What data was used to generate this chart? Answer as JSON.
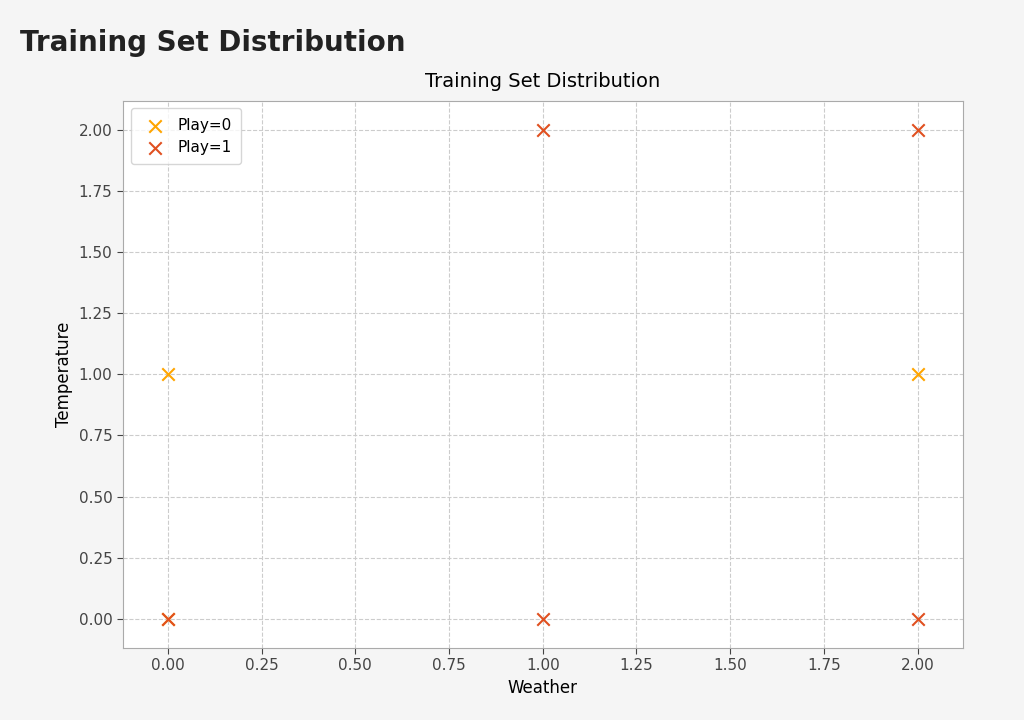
{
  "title": "Training Set Distribution",
  "page_title": "Training Set Distribution",
  "xlabel": "Weather",
  "ylabel": "Temperature",
  "play0": {
    "x": [
      0,
      0,
      2
    ],
    "y": [
      0,
      1,
      1
    ],
    "color": "#FFA500",
    "label": "Play=0",
    "marker": "x",
    "zorder": 3
  },
  "play1": {
    "x": [
      0,
      1,
      1,
      2,
      2
    ],
    "y": [
      0,
      0,
      2,
      0,
      2
    ],
    "color": "#E05020",
    "label": "Play=1",
    "marker": "x",
    "zorder": 4
  },
  "xlim": [
    -0.12,
    2.12
  ],
  "ylim": [
    -0.12,
    2.12
  ],
  "xticks": [
    0.0,
    0.25,
    0.5,
    0.75,
    1.0,
    1.25,
    1.5,
    1.75,
    2.0
  ],
  "yticks": [
    0.0,
    0.25,
    0.5,
    0.75,
    1.0,
    1.25,
    1.5,
    1.75,
    2.0
  ],
  "page_bg_color": "#f5f5f5",
  "plot_bg_color": "#ffffff",
  "grid_color": "#cccccc",
  "grid_style": "--",
  "title_fontsize": 14,
  "page_title_fontsize": 20,
  "label_fontsize": 12,
  "tick_fontsize": 11,
  "marker_size": 80,
  "marker_linewidth": 1.5,
  "spine_color": "#aaaaaa",
  "legend_fontsize": 11
}
